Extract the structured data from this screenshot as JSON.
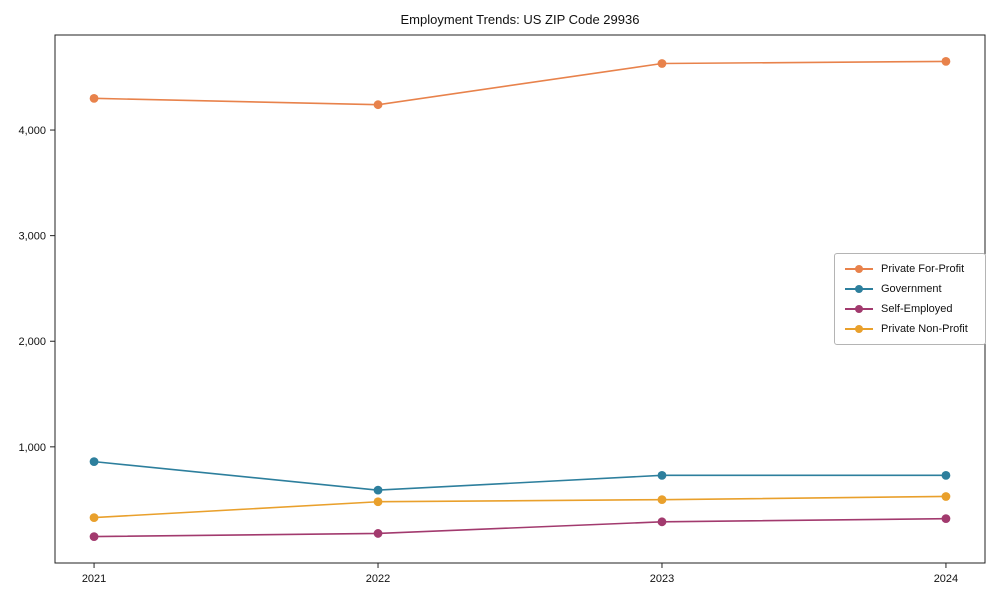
{
  "page": {
    "title": "Employment Trends: US ZIP Code 29936"
  },
  "chart_data": {
    "type": "line",
    "title": "Employment Trends: US ZIP Code 29936",
    "xlabel": "",
    "ylabel": "",
    "grid": false,
    "legend_position": "center-right",
    "categories": [
      "2021",
      "2022",
      "2023",
      "2024"
    ],
    "series": [
      {
        "name": "Private For-Profit",
        "color": "#e8824b",
        "values": [
          4300,
          4240,
          4630,
          4650
        ]
      },
      {
        "name": "Government",
        "color": "#2d7f9d",
        "values": [
          860,
          590,
          730,
          730
        ]
      },
      {
        "name": "Self-Employed",
        "color": "#a23a6e",
        "values": [
          150,
          180,
          290,
          320
        ]
      },
      {
        "name": "Private Non-Profit",
        "color": "#e9a02c",
        "values": [
          330,
          480,
          500,
          530
        ]
      }
    ],
    "y_ticks": [
      {
        "value": 1000,
        "label": "1,000"
      },
      {
        "value": 2000,
        "label": "2,000"
      },
      {
        "value": 3000,
        "label": "3,000"
      },
      {
        "value": 4000,
        "label": "4,000"
      }
    ],
    "ylim": [
      -100,
      4900
    ]
  }
}
